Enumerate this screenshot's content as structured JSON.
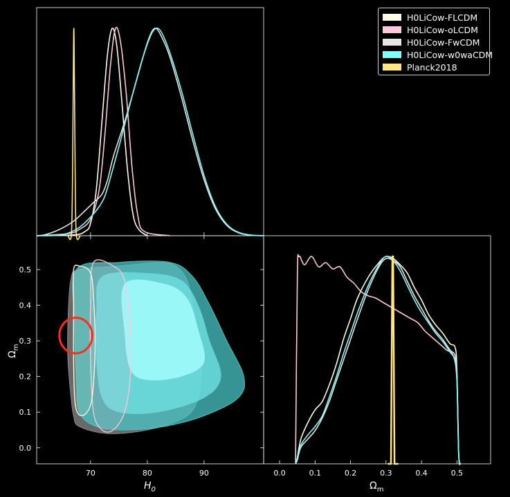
{
  "chart_data": {
    "type": "corner",
    "legend": [
      {
        "label": "H0LiCow-FLCDM",
        "color": "#ffffe6"
      },
      {
        "label": "H0LiCow-oLCDM",
        "color": "#ffc8dc"
      },
      {
        "label": "H0LiCow-FwCDM",
        "color": "#e6e6e6"
      },
      {
        "label": "H0LiCow-w0waCDM",
        "color": "#80ffff"
      },
      {
        "label": "Planck2018",
        "color": "#ffe680"
      }
    ],
    "legend_placement": "top-right",
    "h0_axis": {
      "label_main": "H",
      "label_sub": "0",
      "lim": [
        60.5,
        100.5
      ],
      "ticks": [
        70,
        80,
        90
      ],
      "tick_labels": [
        "70",
        "80",
        "90"
      ]
    },
    "om_axis": {
      "label_main": "Ω",
      "label_sub": "m",
      "lim": [
        -0.045,
        0.595
      ],
      "ticks": [
        0.0,
        0.1,
        0.2,
        0.3,
        0.4,
        0.5
      ],
      "tick_labels": [
        "0.0",
        "0.1",
        "0.2",
        "0.3",
        "0.4",
        "0.5"
      ]
    },
    "h0_marginals": [
      {
        "name": "H0LiCow-FLCDM",
        "color": "#ffffe6",
        "points": [
          [
            60.5,
            0
          ],
          [
            67,
            0.004
          ],
          [
            69,
            0.02
          ],
          [
            70,
            0.06
          ],
          [
            71,
            0.22
          ],
          [
            72,
            0.55
          ],
          [
            73,
            0.88
          ],
          [
            73.8,
            1.0
          ],
          [
            74.6,
            0.92
          ],
          [
            75.5,
            0.65
          ],
          [
            76.5,
            0.32
          ],
          [
            77.5,
            0.1
          ],
          [
            78.5,
            0.03
          ],
          [
            80,
            0
          ]
        ]
      },
      {
        "name": "H0LiCow-oLCDM",
        "color": "#ffc8dc",
        "points": [
          [
            60.5,
            0
          ],
          [
            66,
            0.01
          ],
          [
            68,
            0.03
          ],
          [
            70,
            0.08
          ],
          [
            71.5,
            0.22
          ],
          [
            72.5,
            0.48
          ],
          [
            73.5,
            0.82
          ],
          [
            74.4,
            1.0
          ],
          [
            75.3,
            0.93
          ],
          [
            76.3,
            0.68
          ],
          [
            77.3,
            0.33
          ],
          [
            78.3,
            0.1
          ],
          [
            79.5,
            0.02
          ],
          [
            84,
            0
          ]
        ]
      },
      {
        "name": "H0LiCow-FwCDM",
        "color": "#e6e6e6",
        "points": [
          [
            60.5,
            0
          ],
          [
            62,
            0.005
          ],
          [
            64.5,
            0.03
          ],
          [
            67,
            0.07
          ],
          [
            69,
            0.12
          ],
          [
            70.5,
            0.16
          ],
          [
            72,
            0.2
          ],
          [
            73,
            0.27
          ],
          [
            74,
            0.38
          ],
          [
            76,
            0.55
          ],
          [
            78,
            0.74
          ],
          [
            80,
            0.93
          ],
          [
            81.3,
            1.0
          ],
          [
            82.5,
            0.96
          ],
          [
            84,
            0.86
          ],
          [
            86,
            0.67
          ],
          [
            88,
            0.46
          ],
          [
            90,
            0.27
          ],
          [
            92,
            0.13
          ],
          [
            94,
            0.05
          ],
          [
            96,
            0.015
          ],
          [
            98,
            0.003
          ],
          [
            100.5,
            0
          ]
        ]
      },
      {
        "name": "H0LiCow-w0waCDM",
        "color": "#80ffff",
        "points": [
          [
            60.5,
            0
          ],
          [
            64,
            0.002
          ],
          [
            66,
            0.012
          ],
          [
            68,
            0.04
          ],
          [
            70,
            0.09
          ],
          [
            71.5,
            0.14
          ],
          [
            72.5,
            0.19
          ],
          [
            73.5,
            0.28
          ],
          [
            75,
            0.43
          ],
          [
            77,
            0.64
          ],
          [
            79,
            0.84
          ],
          [
            80.5,
            0.96
          ],
          [
            81.5,
            1.0
          ],
          [
            82.5,
            0.98
          ],
          [
            84,
            0.88
          ],
          [
            86,
            0.7
          ],
          [
            88,
            0.49
          ],
          [
            90,
            0.29
          ],
          [
            92,
            0.14
          ],
          [
            94,
            0.055
          ],
          [
            96,
            0.017
          ],
          [
            98,
            0.004
          ],
          [
            100.5,
            0
          ]
        ]
      },
      {
        "name": "Planck2018",
        "color": "#ffe680",
        "points": [
          [
            66.0,
            0
          ],
          [
            66.6,
            0.0
          ],
          [
            66.8,
            0.25
          ],
          [
            66.95,
            0.75
          ],
          [
            67.05,
            1.0
          ],
          [
            67.15,
            0.75
          ],
          [
            67.3,
            0.25
          ],
          [
            67.5,
            0.0
          ],
          [
            68.2,
            0
          ]
        ]
      }
    ],
    "om_marginals": [
      {
        "name": "H0LiCow-FLCDM",
        "color": "#ffffe6",
        "points": [
          [
            0.045,
            0
          ],
          [
            0.05,
            0.03
          ],
          [
            0.06,
            0.12
          ],
          [
            0.08,
            0.2
          ],
          [
            0.1,
            0.26
          ],
          [
            0.12,
            0.3
          ],
          [
            0.14,
            0.38
          ],
          [
            0.16,
            0.48
          ],
          [
            0.18,
            0.6
          ],
          [
            0.2,
            0.7
          ],
          [
            0.22,
            0.8
          ],
          [
            0.25,
            0.9
          ],
          [
            0.28,
            0.97
          ],
          [
            0.3,
            1.0
          ],
          [
            0.32,
            0.99
          ],
          [
            0.34,
            0.96
          ],
          [
            0.36,
            0.92
          ],
          [
            0.38,
            0.85
          ],
          [
            0.4,
            0.79
          ],
          [
            0.42,
            0.72
          ],
          [
            0.44,
            0.67
          ],
          [
            0.46,
            0.63
          ],
          [
            0.48,
            0.58
          ],
          [
            0.495,
            0.56
          ],
          [
            0.5,
            0.45
          ],
          [
            0.505,
            0.05
          ],
          [
            0.51,
            0
          ]
        ]
      },
      {
        "name": "H0LiCow-oLCDM",
        "color": "#ffc8dc",
        "points": [
          [
            0.045,
            0
          ],
          [
            0.05,
            0.9
          ],
          [
            0.055,
            1.0
          ],
          [
            0.07,
            0.96
          ],
          [
            0.09,
            1.0
          ],
          [
            0.11,
            0.95
          ],
          [
            0.13,
            0.97
          ],
          [
            0.15,
            0.94
          ],
          [
            0.17,
            0.95
          ],
          [
            0.19,
            0.9
          ],
          [
            0.21,
            0.87
          ],
          [
            0.23,
            0.83
          ],
          [
            0.25,
            0.81
          ],
          [
            0.27,
            0.8
          ],
          [
            0.29,
            0.78
          ],
          [
            0.31,
            0.76
          ],
          [
            0.33,
            0.74
          ],
          [
            0.35,
            0.72
          ],
          [
            0.37,
            0.7
          ],
          [
            0.39,
            0.68
          ],
          [
            0.41,
            0.64
          ],
          [
            0.43,
            0.61
          ],
          [
            0.45,
            0.58
          ],
          [
            0.47,
            0.55
          ],
          [
            0.49,
            0.52
          ],
          [
            0.5,
            0.4
          ],
          [
            0.505,
            0.05
          ],
          [
            0.51,
            0
          ]
        ]
      },
      {
        "name": "H0LiCow-FwCDM",
        "color": "#e6e6e6",
        "points": [
          [
            0.045,
            0
          ],
          [
            0.05,
            0.02
          ],
          [
            0.06,
            0.08
          ],
          [
            0.08,
            0.12
          ],
          [
            0.1,
            0.16
          ],
          [
            0.12,
            0.22
          ],
          [
            0.14,
            0.3
          ],
          [
            0.16,
            0.4
          ],
          [
            0.18,
            0.5
          ],
          [
            0.2,
            0.6
          ],
          [
            0.22,
            0.7
          ],
          [
            0.25,
            0.84
          ],
          [
            0.28,
            0.95
          ],
          [
            0.3,
            0.99
          ],
          [
            0.32,
            0.98
          ],
          [
            0.34,
            0.95
          ],
          [
            0.36,
            0.88
          ],
          [
            0.38,
            0.81
          ],
          [
            0.4,
            0.75
          ],
          [
            0.42,
            0.69
          ],
          [
            0.44,
            0.64
          ],
          [
            0.46,
            0.6
          ],
          [
            0.48,
            0.55
          ],
          [
            0.495,
            0.52
          ],
          [
            0.5,
            0.42
          ],
          [
            0.505,
            0.04
          ],
          [
            0.51,
            0
          ]
        ]
      },
      {
        "name": "H0LiCow-w0waCDM",
        "color": "#80ffff",
        "points": [
          [
            0.045,
            0
          ],
          [
            0.05,
            0.02
          ],
          [
            0.06,
            0.09
          ],
          [
            0.08,
            0.14
          ],
          [
            0.1,
            0.18
          ],
          [
            0.12,
            0.23
          ],
          [
            0.14,
            0.32
          ],
          [
            0.16,
            0.42
          ],
          [
            0.18,
            0.53
          ],
          [
            0.2,
            0.63
          ],
          [
            0.22,
            0.73
          ],
          [
            0.25,
            0.86
          ],
          [
            0.28,
            0.96
          ],
          [
            0.3,
            1.0
          ],
          [
            0.32,
            0.98
          ],
          [
            0.34,
            0.93
          ],
          [
            0.36,
            0.86
          ],
          [
            0.38,
            0.79
          ],
          [
            0.4,
            0.73
          ],
          [
            0.42,
            0.68
          ],
          [
            0.44,
            0.63
          ],
          [
            0.46,
            0.59
          ],
          [
            0.48,
            0.54
          ],
          [
            0.495,
            0.5
          ],
          [
            0.5,
            0.4
          ],
          [
            0.505,
            0.04
          ],
          [
            0.51,
            0
          ]
        ]
      },
      {
        "name": "Planck2018",
        "color": "#ffe680",
        "points": [
          [
            0.305,
            0
          ],
          [
            0.314,
            0
          ],
          [
            0.316,
            0.5
          ],
          [
            0.318,
            1.0
          ],
          [
            0.32,
            1.0
          ],
          [
            0.322,
            0.5
          ],
          [
            0.324,
            0
          ],
          [
            0.335,
            0
          ]
        ]
      }
    ],
    "contours_2d": [
      {
        "name": "H0LiCow-FwCDM",
        "color": "#8c8c8c",
        "outer": [
          [
            66.5,
            0.47
          ],
          [
            68,
            0.5
          ],
          [
            75,
            0.51
          ],
          [
            82,
            0.52
          ],
          [
            85,
            0.51
          ],
          [
            87,
            0.47
          ],
          [
            88,
            0.4
          ],
          [
            89,
            0.3
          ],
          [
            89.5,
            0.2
          ],
          [
            88.5,
            0.12
          ],
          [
            86,
            0.08
          ],
          [
            80,
            0.05
          ],
          [
            73,
            0.04
          ],
          [
            68,
            0.06
          ],
          [
            67,
            0.09
          ],
          [
            66.5,
            0.15
          ],
          [
            66,
            0.25
          ],
          [
            66,
            0.35
          ]
        ]
      },
      {
        "name": "H0LiCow-w0waCDM",
        "color": "#49c6c6",
        "outer": [
          [
            67.5,
            0.5
          ],
          [
            75,
            0.52
          ],
          [
            84,
            0.52
          ],
          [
            88,
            0.48
          ],
          [
            91,
            0.4
          ],
          [
            94,
            0.3
          ],
          [
            97,
            0.2
          ],
          [
            96,
            0.14
          ],
          [
            90,
            0.09
          ],
          [
            83,
            0.06
          ],
          [
            76,
            0.05
          ],
          [
            71,
            0.06
          ],
          [
            68,
            0.1
          ],
          [
            67.5,
            0.2
          ],
          [
            67.2,
            0.35
          ]
        ],
        "middle": [
          [
            72,
            0.48
          ],
          [
            80,
            0.49
          ],
          [
            86,
            0.47
          ],
          [
            89,
            0.4
          ],
          [
            91,
            0.3
          ],
          [
            93,
            0.2
          ],
          [
            90,
            0.14
          ],
          [
            82,
            0.1
          ],
          [
            75,
            0.1
          ],
          [
            72,
            0.14
          ],
          [
            71,
            0.25
          ],
          [
            71,
            0.38
          ]
        ],
        "inner": [
          [
            76,
            0.46
          ],
          [
            83,
            0.46
          ],
          [
            87,
            0.42
          ],
          [
            89,
            0.33
          ],
          [
            90,
            0.24
          ],
          [
            86,
            0.2
          ],
          [
            80,
            0.19
          ],
          [
            77,
            0.22
          ],
          [
            76,
            0.32
          ]
        ]
      },
      {
        "name": "H0LiCow-oLCDM",
        "color": "#ffc8dc",
        "outer": [
          [
            70.5,
            0.52
          ],
          [
            74,
            0.51
          ],
          [
            76,
            0.47
          ],
          [
            77,
            0.35
          ],
          [
            77,
            0.2
          ],
          [
            76,
            0.1
          ],
          [
            74,
            0.05
          ],
          [
            72,
            0.05
          ],
          [
            70.5,
            0.1
          ],
          [
            70,
            0.25
          ],
          [
            70,
            0.4
          ]
        ]
      },
      {
        "name": "H0LiCow-FLCDM",
        "color": "#ffffe6",
        "outer": [
          [
            67,
            0.5
          ],
          [
            68,
            0.51
          ],
          [
            70,
            0.49
          ],
          [
            70.6,
            0.4
          ],
          [
            70.8,
            0.3
          ],
          [
            70.6,
            0.2
          ],
          [
            70,
            0.12
          ],
          [
            68.5,
            0.09
          ],
          [
            67.3,
            0.12
          ],
          [
            67,
            0.25
          ],
          [
            67,
            0.4
          ]
        ]
      },
      {
        "name": "Planck2018",
        "color": "#ff2b1a",
        "center": [
          67.4,
          0.315
        ],
        "rx": 2.9,
        "ry": 0.05
      }
    ]
  }
}
